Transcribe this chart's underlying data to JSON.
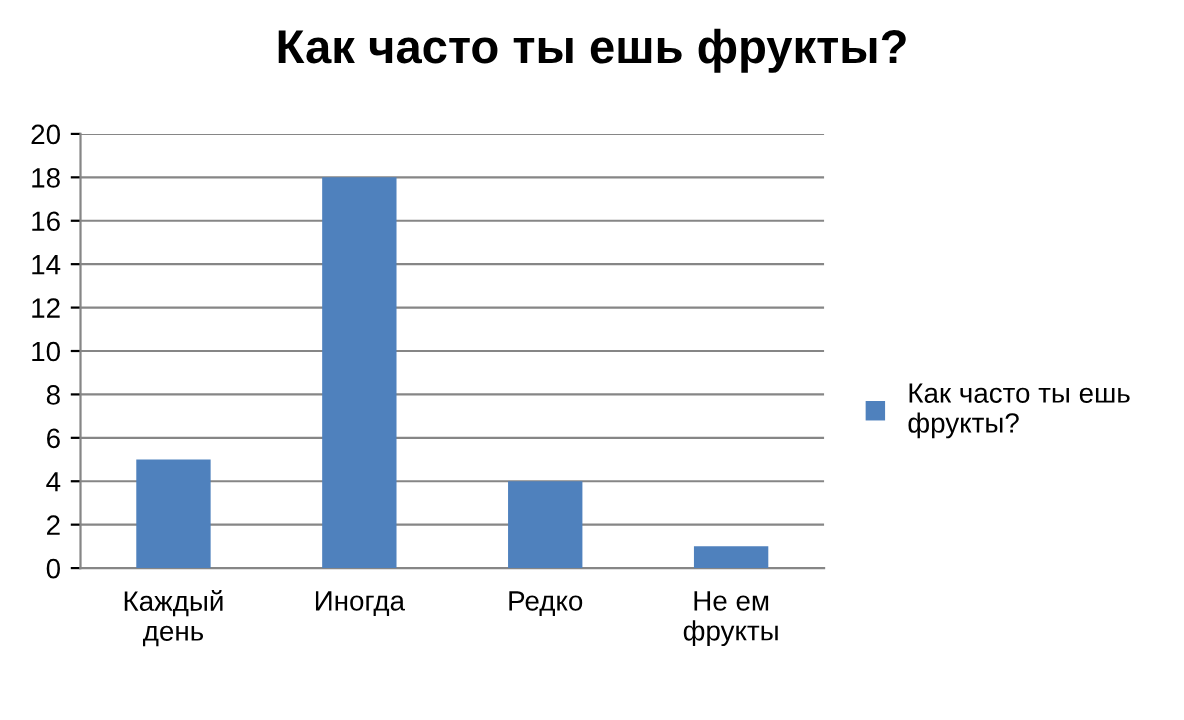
{
  "chart_data": {
    "type": "bar",
    "title": "Как часто ты ешь фрукты?",
    "categories": [
      "Каждый день",
      "Иногда",
      "Редко",
      "Не ем фрукты"
    ],
    "series": [
      {
        "name": "Как часто ты ешь фрукты?",
        "color": "#4f81bd",
        "values": [
          5,
          18,
          4,
          1
        ]
      }
    ],
    "ylim": [
      0,
      20
    ],
    "yticks": [
      0,
      2,
      4,
      6,
      8,
      10,
      12,
      14,
      16,
      18,
      20
    ],
    "grid": "y",
    "legend": "right"
  }
}
